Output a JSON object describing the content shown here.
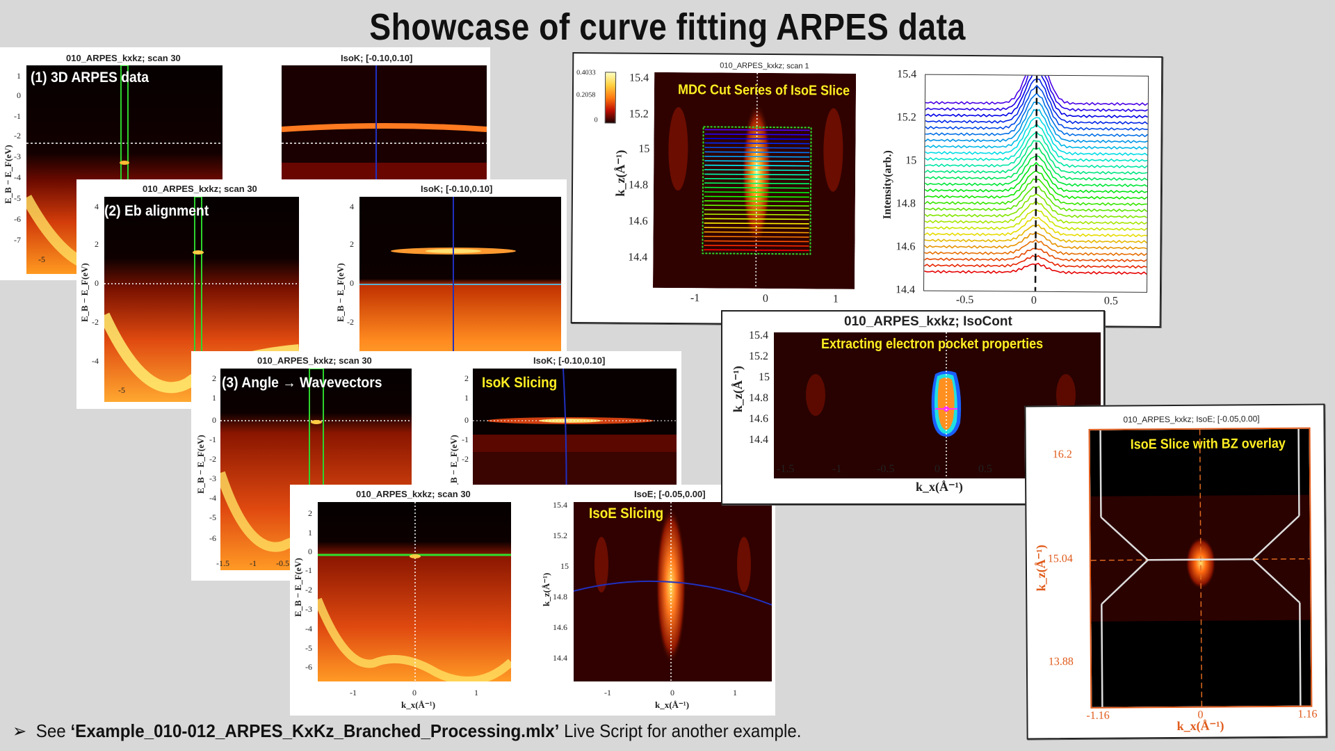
{
  "slide": {
    "title": "Showcase of curve fitting ARPES data",
    "footer": {
      "bullet": "➢",
      "prefix": "See ",
      "filename": "‘Example_010-012_ARPES_KxKz_Branched_Processing.mlx’",
      "suffix": " Live Script for another example."
    }
  },
  "panel1": {
    "left_title": "010_ARPES_kxkz; scan 30",
    "right_title": "IsoK; [-0.10,0.10]",
    "label": "(1) 3D ARPES data",
    "yticks": [
      "1",
      "0",
      "-1",
      "-2",
      "-3",
      "-4",
      "-5",
      "-6",
      "-7"
    ],
    "xticks": [
      "-5"
    ],
    "ylabel": "E_B − E_F(eV)"
  },
  "panel2": {
    "left_title": "010_ARPES_kxkz; scan 30",
    "right_title": "IsoK; [-0.10,0.10]",
    "label": "(2) Eb alignment",
    "yticks": [
      "4",
      "2",
      "0",
      "-2",
      "-4"
    ],
    "xticks": [
      "-5"
    ]
  },
  "panel3": {
    "left_title": "010_ARPES_kxkz; scan 30",
    "right_title": "IsoK; [-0.10,0.10]",
    "label": "(3) Angle → Wavevectors",
    "right_label": "IsoK Slicing",
    "yticks": [
      "2",
      "1",
      "0",
      "-1",
      "-2",
      "-3",
      "-4",
      "-5",
      "-6"
    ],
    "xticks": [
      "-1.5",
      "-1",
      "-0.5"
    ]
  },
  "panel4": {
    "left_title": "010_ARPES_kxkz; scan 30",
    "right_title": "IsoE; [-0.05,0.00]",
    "right_label": "IsoE Slicing",
    "yticks": [
      "2",
      "1",
      "0",
      "-1",
      "-2",
      "-3",
      "-4",
      "-5",
      "-6"
    ],
    "xticks": [
      "-1",
      "0",
      "1"
    ],
    "right_yticks": [
      "15.4",
      "15.2",
      "15",
      "14.8",
      "14.6",
      "14.4"
    ],
    "right_xticks": [
      "-1",
      "0",
      "1"
    ]
  },
  "panel5": {
    "title": "010_ARPES_kxkz; scan 1",
    "label": "MDC Cut Series of IsoE Slice",
    "colorbar_ticks": [
      "0.4033",
      "0.2058",
      "0"
    ],
    "yticks": [
      "15.4",
      "15.2",
      "15",
      "14.8",
      "14.6",
      "14.4"
    ],
    "xticks": [
      "-1",
      "0",
      "1"
    ],
    "mdc_yticks": [
      "15.4",
      "15.2",
      "15",
      "14.8",
      "14.6",
      "14.4"
    ],
    "mdc_xticks": [
      "-0.5",
      "0",
      "0.5"
    ],
    "mdc_ylabel": "Intensity(arb.)"
  },
  "panel6": {
    "title": "010_ARPES_kxkz; IsoCont",
    "label": "Extracting electron pocket properties",
    "yticks": [
      "15.4",
      "15.2",
      "15",
      "14.8",
      "14.6",
      "14.4"
    ],
    "xticks": [
      "-1.5",
      "-1",
      "-0.5",
      "0",
      "0.5"
    ]
  },
  "panel7": {
    "title": "010_ARPES_kxkz; IsoE; [-0.05,0.00]",
    "label": "IsoE Slice with BZ overlay",
    "yticks": [
      "16.2",
      "15.04",
      "13.88"
    ],
    "xticks": [
      "-1.16",
      "0",
      "1.16"
    ]
  },
  "axis_text": {
    "energy": "E_B − E_F(eV)",
    "kx": "k_x(Å⁻¹)",
    "kz": "k_z(Å⁻¹)"
  },
  "colors": {
    "accent_orange": "#e05a1a",
    "label_yellow": "#ffee22",
    "background": "#d8d8d8"
  }
}
